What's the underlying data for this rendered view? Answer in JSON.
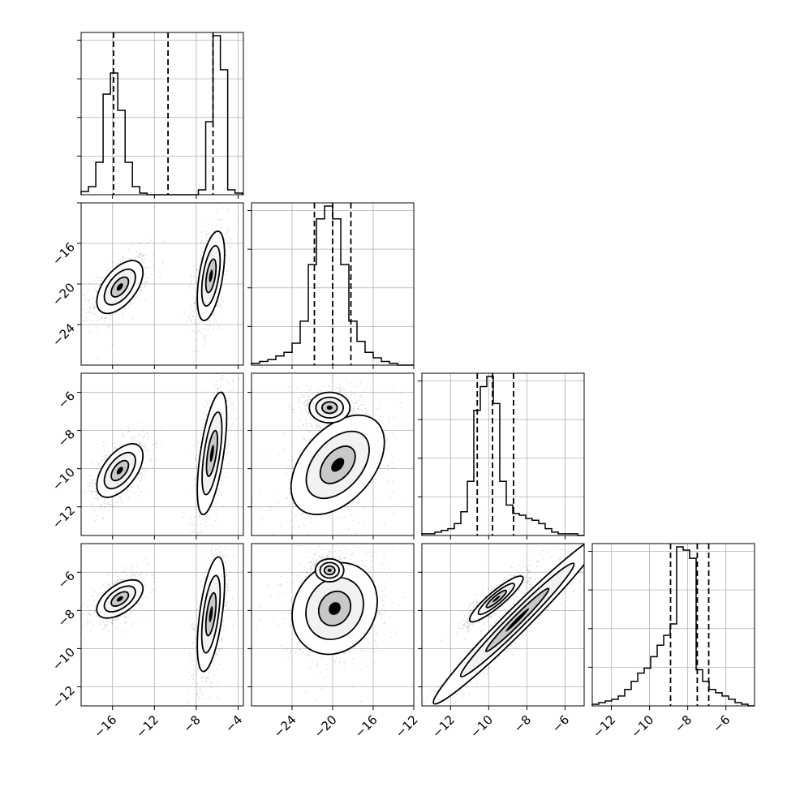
{
  "chart_data": {
    "type": "corner",
    "n_params": 4,
    "grid": true,
    "params": [
      {
        "range": [
          -19,
          -3.5
        ],
        "ticks": [
          -16,
          -12,
          -8,
          -4
        ],
        "hist": {
          "edges_start": -19,
          "bin_width": 0.7,
          "counts": [
            0.02,
            0.05,
            0.2,
            0.62,
            0.75,
            0.52,
            0.2,
            0.05,
            0.01,
            0,
            0,
            0,
            0,
            0,
            0,
            0,
            0.03,
            0.45,
            0.98,
            0.77,
            0.03,
            0.01
          ]
        },
        "quantiles": [
          -15.9,
          -10.7,
          -6.4
        ]
      },
      {
        "range": [
          -28,
          -12
        ],
        "ticks": [
          -24,
          -20,
          -16,
          -12
        ],
        "hist": {
          "edges_start": -28,
          "bin_width": 0.8,
          "counts": [
            0.01,
            0.02,
            0.03,
            0.05,
            0.07,
            0.12,
            0.24,
            0.55,
            0.8,
            0.87,
            0.8,
            0.55,
            0.24,
            0.13,
            0.07,
            0.04,
            0.02,
            0.01,
            0,
            0
          ]
        },
        "quantiles": [
          -21.8,
          -20.0,
          -18.2
        ]
      },
      {
        "range": [
          -13.5,
          -5
        ],
        "ticks": [
          -12,
          -10,
          -8,
          -6
        ],
        "hist": {
          "edges_start": -13.5,
          "bin_width": 0.34,
          "counts": [
            0.01,
            0.01,
            0.02,
            0.03,
            0.04,
            0.07,
            0.14,
            0.32,
            0.74,
            0.88,
            0.94,
            0.78,
            0.32,
            0.18,
            0.13,
            0.12,
            0.1,
            0.09,
            0.07,
            0.04,
            0.02,
            0.01,
            0.01,
            0.01,
            0
          ]
        },
        "quantiles": [
          -10.6,
          -9.8,
          -8.7
        ]
      },
      {
        "range": [
          -13,
          -4.5
        ],
        "ticks": [
          -12,
          -10,
          -8,
          -6
        ],
        "hist": {
          "edges_start": -13,
          "bin_width": 0.34,
          "counts": [
            0.01,
            0.02,
            0.03,
            0.04,
            0.06,
            0.1,
            0.15,
            0.2,
            0.23,
            0.3,
            0.37,
            0.43,
            0.5,
            0.97,
            0.95,
            0.9,
            0.22,
            0.15,
            0.1,
            0.08,
            0.06,
            0.04,
            0.02,
            0.01,
            0
          ]
        },
        "quantiles": [
          -8.9,
          -7.5,
          -6.9
        ]
      }
    ],
    "joint": [
      {
        "row": 1,
        "col": 0,
        "modes": [
          {
            "cx": -15.3,
            "cy": -20.3,
            "sx": 1.1,
            "sy": 1.3,
            "rho": 0.55
          },
          {
            "cx": -6.6,
            "cy": -19.2,
            "sx": 0.65,
            "sy": 2.2,
            "rho": 0.5
          }
        ]
      },
      {
        "row": 2,
        "col": 0,
        "modes": [
          {
            "cx": -15.3,
            "cy": -10.1,
            "sx": 1.1,
            "sy": 0.7,
            "rho": 0.55
          },
          {
            "cx": -6.5,
            "cy": -9.2,
            "sx": 0.7,
            "sy": 1.6,
            "rho": 0.6
          }
        ]
      },
      {
        "row": 3,
        "col": 0,
        "modes": [
          {
            "cx": -15.3,
            "cy": -7.4,
            "sx": 1.1,
            "sy": 0.5,
            "rho": 0.55
          },
          {
            "cx": -6.6,
            "cy": -8.2,
            "sx": 0.65,
            "sy": 1.5,
            "rho": 0.55
          }
        ]
      },
      {
        "row": 2,
        "col": 1,
        "modes": [
          {
            "cx": -19.5,
            "cy": -9.8,
            "sx": 2.3,
            "sy": 1.3,
            "rho": 0.45
          },
          {
            "cx": -20.3,
            "cy": -6.8,
            "sx": 1.0,
            "sy": 0.4,
            "rho": 0.0
          }
        ]
      },
      {
        "row": 3,
        "col": 1,
        "modes": [
          {
            "cx": -19.8,
            "cy": -7.9,
            "sx": 2.1,
            "sy": 1.2,
            "rho": 0.15
          },
          {
            "cx": -20.3,
            "cy": -5.9,
            "sx": 0.7,
            "sy": 0.3,
            "rho": 0.0
          }
        ]
      },
      {
        "row": 3,
        "col": 2,
        "modes": [
          {
            "cx": -9.6,
            "cy": -7.4,
            "sx": 0.7,
            "sy": 0.6,
            "rho": 0.9
          },
          {
            "cx": -8.5,
            "cy": -8.5,
            "sx": 2.2,
            "sy": 2.2,
            "rho": 0.98
          }
        ]
      }
    ]
  }
}
